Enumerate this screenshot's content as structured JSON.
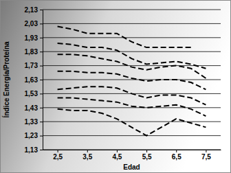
{
  "chart_data": {
    "type": "line",
    "x_label": "Edad",
    "y_label": "Índice Energía/Proteína",
    "x": [
      2.5,
      3,
      3.5,
      4,
      4.5,
      5,
      5.5,
      6,
      6.5,
      7,
      7.5
    ],
    "xlim": [
      2,
      8
    ],
    "xticks": [
      {
        "value": 2.5,
        "label": "2,5"
      },
      {
        "value": 3.5,
        "label": "3,5"
      },
      {
        "value": 4.5,
        "label": "4,5"
      },
      {
        "value": 5.5,
        "label": "5,5"
      },
      {
        "value": 6.5,
        "label": "6,5"
      },
      {
        "value": 7.5,
        "label": "7,5"
      }
    ],
    "ylim": [
      1.13,
      2.13
    ],
    "yticks": [
      {
        "value": 1.13,
        "label": "1,13"
      },
      {
        "value": 1.23,
        "label": "1,23"
      },
      {
        "value": 1.33,
        "label": "1,33"
      },
      {
        "value": 1.43,
        "label": "1,43"
      },
      {
        "value": 1.53,
        "label": "1,53"
      },
      {
        "value": 1.63,
        "label": "1,63"
      },
      {
        "value": 1.73,
        "label": "1,73"
      },
      {
        "value": 1.83,
        "label": "1,83"
      },
      {
        "value": 1.93,
        "label": "1,93"
      },
      {
        "value": 2.03,
        "label": "2,03"
      },
      {
        "value": 2.13,
        "label": "2,13"
      }
    ],
    "grid": true,
    "series": [
      {
        "color": "#000000",
        "line_style": "dashed",
        "values": [
          2.01,
          1.99,
          1.96,
          1.96,
          1.96,
          1.9,
          1.86,
          1.86,
          1.86,
          1.86,
          null
        ]
      },
      {
        "color": "#000000",
        "line_style": "dashed",
        "values": [
          1.89,
          1.88,
          1.86,
          1.86,
          1.84,
          1.78,
          1.74,
          1.75,
          1.76,
          1.74,
          1.71
        ]
      },
      {
        "color": "#000000",
        "line_style": "dashed",
        "values": [
          1.81,
          1.81,
          1.8,
          1.78,
          1.76,
          1.72,
          1.7,
          1.72,
          1.73,
          1.71,
          1.64
        ]
      },
      {
        "color": "#000000",
        "line_style": "dashed",
        "values": [
          1.69,
          1.69,
          1.68,
          1.68,
          1.67,
          1.64,
          1.62,
          1.63,
          1.63,
          1.61,
          1.56
        ]
      },
      {
        "color": "#000000",
        "line_style": "dashed",
        "values": [
          1.56,
          1.57,
          1.58,
          1.58,
          1.57,
          1.53,
          1.5,
          1.52,
          1.52,
          1.5,
          1.45
        ]
      },
      {
        "color": "#000000",
        "line_style": "dashed",
        "values": [
          1.5,
          1.5,
          1.49,
          1.48,
          1.47,
          1.44,
          1.43,
          1.44,
          1.45,
          1.42,
          1.37
        ]
      },
      {
        "color": "#000000",
        "line_style": "dashed",
        "values": [
          1.42,
          1.41,
          1.41,
          1.39,
          1.35,
          1.29,
          1.23,
          1.29,
          1.35,
          1.32,
          1.29
        ]
      }
    ]
  }
}
